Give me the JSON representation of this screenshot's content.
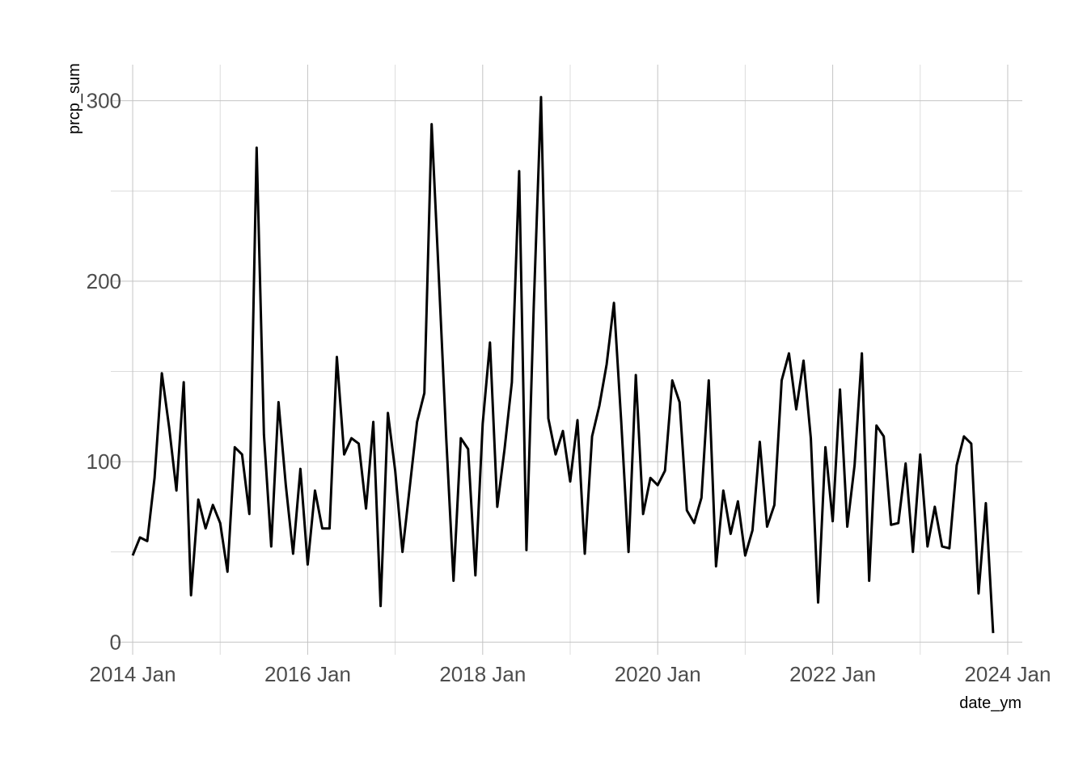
{
  "chart_data": {
    "type": "line",
    "xlabel": "date_ym",
    "ylabel": "prcp_sum",
    "x_ticks": [
      "2014 Jan",
      "2016 Jan",
      "2018 Jan",
      "2020 Jan",
      "2022 Jan",
      "2024 Jan"
    ],
    "y_ticks": [
      "0",
      "100",
      "200",
      "300"
    ],
    "ylim": [
      -7,
      320
    ],
    "xlim": [
      "2013-10",
      "2024-03"
    ],
    "grid": true,
    "legend": "none",
    "line_color": "#000000",
    "series": [
      {
        "x": [
          "2014-01",
          "2014-02",
          "2014-03",
          "2014-04",
          "2014-05",
          "2014-06",
          "2014-07",
          "2014-08",
          "2014-09",
          "2014-10",
          "2014-11",
          "2014-12",
          "2015-01",
          "2015-02",
          "2015-03",
          "2015-04",
          "2015-05",
          "2015-06",
          "2015-07",
          "2015-08",
          "2015-09",
          "2015-10",
          "2015-11",
          "2015-12",
          "2016-01",
          "2016-02",
          "2016-03",
          "2016-04",
          "2016-05",
          "2016-06",
          "2016-07",
          "2016-08",
          "2016-09",
          "2016-10",
          "2016-11",
          "2016-12",
          "2017-01",
          "2017-02",
          "2017-03",
          "2017-04",
          "2017-05",
          "2017-06",
          "2017-07",
          "2017-08",
          "2017-09",
          "2017-10",
          "2017-11",
          "2017-12",
          "2018-01",
          "2018-02",
          "2018-03",
          "2018-04",
          "2018-05",
          "2018-06",
          "2018-07",
          "2018-08",
          "2018-09",
          "2018-10",
          "2018-11",
          "2018-12",
          "2019-01",
          "2019-02",
          "2019-03",
          "2019-04",
          "2019-05",
          "2019-06",
          "2019-07",
          "2019-08",
          "2019-09",
          "2019-10",
          "2019-11",
          "2019-12",
          "2020-01",
          "2020-02",
          "2020-03",
          "2020-04",
          "2020-05",
          "2020-06",
          "2020-07",
          "2020-08",
          "2020-09",
          "2020-10",
          "2020-11",
          "2020-12",
          "2021-01",
          "2021-02",
          "2021-03",
          "2021-04",
          "2021-05",
          "2021-06",
          "2021-07",
          "2021-08",
          "2021-09",
          "2021-10",
          "2021-11",
          "2021-12",
          "2022-01",
          "2022-02",
          "2022-03",
          "2022-04",
          "2022-05",
          "2022-06",
          "2022-07",
          "2022-08",
          "2022-09",
          "2022-10",
          "2022-11",
          "2022-12",
          "2023-01",
          "2023-02",
          "2023-03",
          "2023-04",
          "2023-05",
          "2023-06",
          "2023-07",
          "2023-08",
          "2023-09",
          "2023-10",
          "2023-11"
        ],
        "values": [
          48,
          58,
          56,
          91,
          149,
          119,
          84,
          144,
          26,
          79,
          63,
          76,
          66,
          39,
          108,
          104,
          71,
          274,
          115,
          53,
          133,
          87,
          49,
          96,
          43,
          84,
          63,
          63,
          158,
          104,
          113,
          110,
          74,
          122,
          20,
          127,
          95,
          50,
          86,
          122,
          138,
          287,
          201,
          113,
          34,
          113,
          107,
          37,
          121,
          166,
          75,
          107,
          144,
          261,
          51,
          186,
          302,
          124,
          104,
          117,
          89,
          123,
          49,
          114,
          131,
          154,
          188,
          122,
          50,
          148,
          71,
          91,
          87,
          95,
          145,
          133,
          73,
          66,
          80,
          145,
          42,
          84,
          60,
          78,
          48,
          62,
          111,
          64,
          76,
          145,
          160,
          129,
          156,
          113,
          22,
          108,
          67,
          140,
          64,
          98,
          160,
          34,
          120,
          114,
          65,
          66,
          99,
          50,
          104,
          53,
          75,
          53,
          52,
          98,
          114,
          110,
          27,
          77,
          5
        ]
      }
    ]
  }
}
